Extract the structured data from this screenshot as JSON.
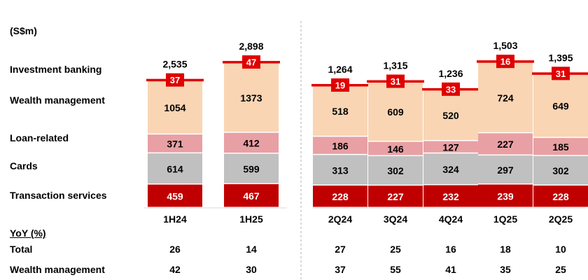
{
  "unit_label": "(S$m)",
  "category_labels": [
    "Investment banking",
    "Wealth management",
    "Loan-related",
    "Cards",
    "Transaction services"
  ],
  "yoy": {
    "heading": "YoY (%)",
    "rows": [
      {
        "label": "Total",
        "values": [
          "26",
          "14",
          "27",
          "25",
          "16",
          "18",
          "10"
        ]
      },
      {
        "label": "Wealth management",
        "values": [
          "42",
          "30",
          "37",
          "55",
          "41",
          "35",
          "25"
        ]
      }
    ]
  },
  "chart_data": {
    "type": "bar",
    "stacked": true,
    "categories": [
      "1H24",
      "1H25",
      "2Q24",
      "3Q24",
      "4Q24",
      "1Q25",
      "2Q25"
    ],
    "totals": [
      "2,535",
      "2,898",
      "1,264",
      "1,315",
      "1,236",
      "1,503",
      "1,395"
    ],
    "series": [
      {
        "name": "Transaction services",
        "values": [
          459,
          467,
          228,
          227,
          232,
          239,
          228
        ],
        "color": "#c00000",
        "label_color": "#ffffff"
      },
      {
        "name": "Cards",
        "values": [
          614,
          599,
          313,
          302,
          324,
          297,
          302
        ],
        "color": "#c0c0c0",
        "label_color": "#000000"
      },
      {
        "name": "Loan-related",
        "values": [
          371,
          412,
          186,
          146,
          127,
          227,
          185
        ],
        "color": "#e8a0a4",
        "label_color": "#000000"
      },
      {
        "name": "Wealth management",
        "values": [
          1054,
          1373,
          518,
          609,
          520,
          724,
          649
        ],
        "color": "#f9d5b4",
        "label_color": "#000000"
      },
      {
        "name": "Investment banking",
        "values": [
          37,
          47,
          19,
          31,
          33,
          16,
          31
        ],
        "color": "#e00000",
        "label_color": "#ffffff"
      }
    ],
    "groups": [
      {
        "categories": [
          "1H24",
          "1H25"
        ],
        "ylim": [
          0,
          3100
        ]
      },
      {
        "categories": [
          "2Q24",
          "3Q24",
          "4Q24",
          "1Q25",
          "2Q25"
        ],
        "ylim": [
          0,
          1610
        ]
      }
    ],
    "divider": "dashed"
  }
}
